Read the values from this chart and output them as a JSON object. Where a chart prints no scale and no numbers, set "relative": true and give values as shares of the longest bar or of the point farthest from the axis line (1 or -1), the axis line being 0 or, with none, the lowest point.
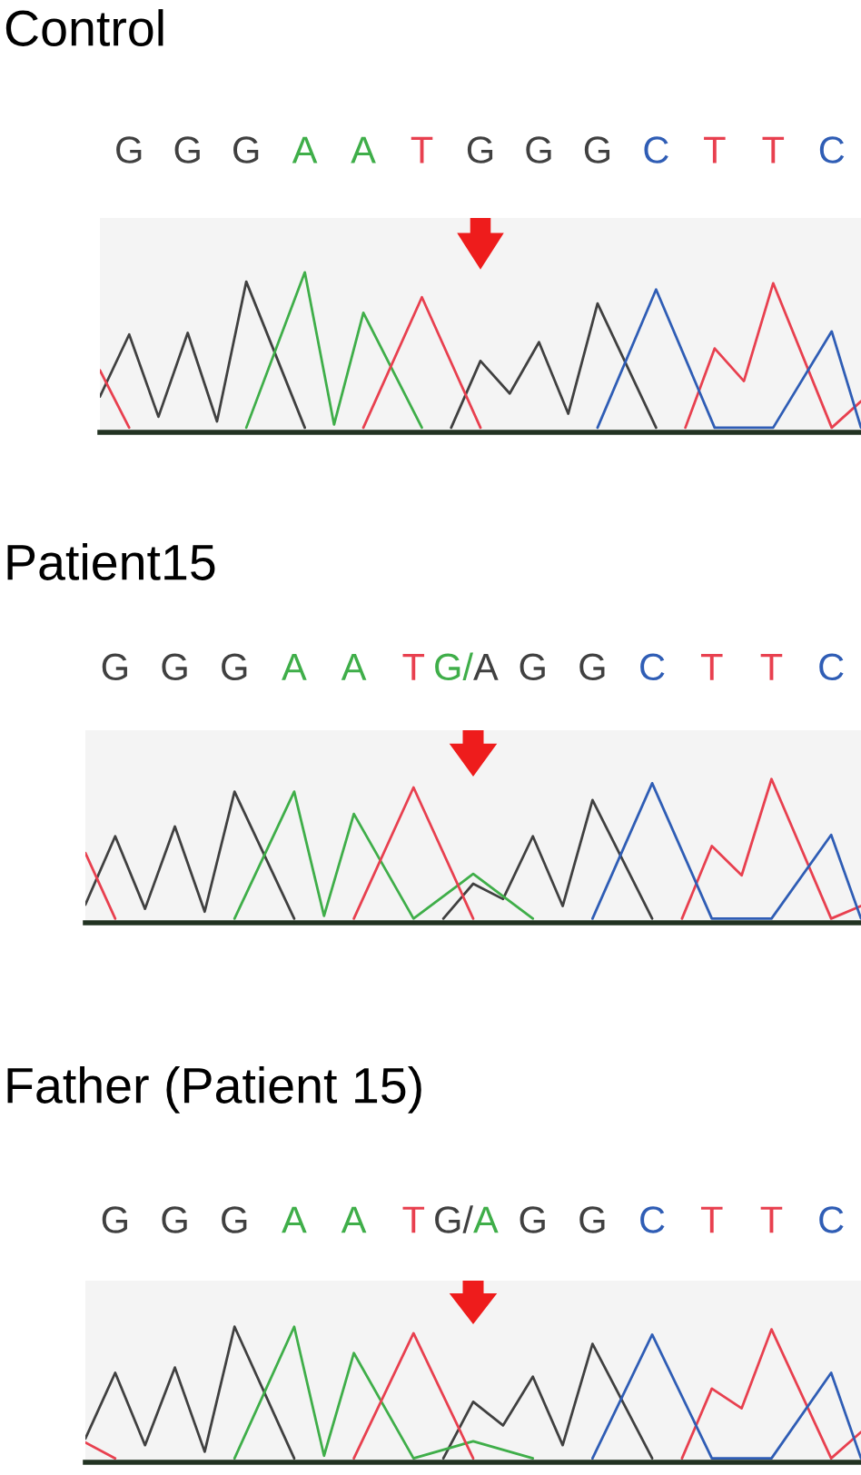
{
  "chart_data": [
    {
      "type": "line",
      "title": "Control",
      "relative": true,
      "categories": [
        null,
        "G",
        null,
        "G",
        null,
        "G",
        null,
        "A",
        null,
        "A",
        null,
        "T",
        null,
        "G",
        null,
        "G",
        null,
        "G",
        null,
        "C",
        null,
        "T",
        null,
        "T",
        null,
        "C",
        null
      ],
      "series": [
        {
          "color": "#404040",
          "values": [
            0.2,
            0.6,
            0.07,
            0.61,
            0.04,
            0.94,
            null,
            0,
            null,
            null,
            null,
            null,
            0,
            0.43,
            0.22,
            0.55,
            0.09,
            0.8,
            null,
            0,
            null,
            null,
            null,
            null,
            null,
            null,
            null
          ]
        },
        {
          "color": "#3fae49",
          "values": [
            null,
            null,
            null,
            null,
            null,
            0,
            null,
            1.0,
            0.02,
            0.74,
            null,
            0,
            null,
            null,
            null,
            null,
            null,
            null,
            null,
            null,
            null,
            null,
            null,
            null,
            null,
            null,
            null
          ]
        },
        {
          "color": "#e8404f",
          "values": [
            0.37,
            0,
            null,
            null,
            null,
            null,
            null,
            null,
            null,
            0,
            null,
            0.84,
            null,
            0,
            null,
            null,
            null,
            null,
            null,
            null,
            0,
            0.51,
            0.3,
            0.93,
            null,
            0,
            0.17
          ]
        },
        {
          "color": "#2f5db5",
          "values": [
            null,
            null,
            null,
            null,
            null,
            null,
            null,
            null,
            null,
            null,
            null,
            null,
            null,
            null,
            null,
            null,
            null,
            0,
            null,
            0.89,
            null,
            0,
            null,
            0,
            null,
            0.62,
            0
          ]
        }
      ]
    },
    {
      "type": "line",
      "title": "Patient15",
      "relative": true,
      "categories": [
        null,
        "G",
        null,
        "G",
        null,
        "G",
        null,
        "A",
        null,
        "A",
        null,
        "T",
        null,
        "G/A",
        null,
        "G",
        null,
        "G",
        null,
        "C",
        null,
        "T",
        null,
        "T",
        null,
        "C",
        null
      ],
      "series": [
        {
          "color": "#404040",
          "values": [
            0.1,
            0.59,
            0.07,
            0.66,
            0.05,
            0.91,
            null,
            0,
            null,
            null,
            null,
            null,
            0,
            0.25,
            0.14,
            0.59,
            0.09,
            0.85,
            null,
            0,
            null,
            null,
            null,
            null,
            null,
            null,
            null
          ]
        },
        {
          "color": "#3fae49",
          "values": [
            null,
            null,
            null,
            null,
            null,
            0,
            null,
            0.91,
            0.02,
            0.75,
            null,
            0,
            null,
            0.32,
            null,
            0,
            null,
            null,
            null,
            null,
            null,
            null,
            null,
            null,
            null,
            null,
            null
          ]
        },
        {
          "color": "#e8404f",
          "values": [
            0.47,
            0,
            null,
            null,
            null,
            null,
            null,
            null,
            null,
            0,
            null,
            0.94,
            null,
            0,
            null,
            null,
            null,
            null,
            null,
            null,
            0,
            0.52,
            0.31,
            1.0,
            null,
            0,
            0.09
          ]
        },
        {
          "color": "#2f5db5",
          "values": [
            null,
            null,
            null,
            null,
            null,
            null,
            null,
            null,
            null,
            null,
            null,
            null,
            null,
            null,
            null,
            null,
            null,
            0,
            null,
            0.97,
            null,
            0,
            null,
            0,
            null,
            0.6,
            0
          ]
        }
      ]
    },
    {
      "type": "line",
      "title": "Father (Patient 15)",
      "relative": true,
      "categories": [
        null,
        "G",
        null,
        "G",
        null,
        "G",
        null,
        "A",
        null,
        "A",
        null,
        "T",
        null,
        "G/A",
        null,
        "G",
        null,
        "G",
        null,
        "C",
        null,
        "T",
        null,
        "T",
        null,
        "C",
        null
      ],
      "series": [
        {
          "color": "#404040",
          "values": [
            0.15,
            0.65,
            0.1,
            0.69,
            0.05,
            1.0,
            null,
            0,
            null,
            null,
            null,
            null,
            0,
            0.43,
            0.25,
            0.62,
            0.1,
            0.87,
            null,
            0,
            null,
            null,
            null,
            null,
            null,
            null,
            null
          ]
        },
        {
          "color": "#3fae49",
          "values": [
            null,
            null,
            null,
            null,
            null,
            0,
            null,
            1.0,
            0.02,
            0.8,
            null,
            0,
            null,
            0.13,
            null,
            0,
            null,
            null,
            null,
            null,
            null,
            null,
            null,
            null,
            null,
            null,
            null
          ]
        },
        {
          "color": "#e8404f",
          "values": [
            0.12,
            0,
            null,
            null,
            null,
            null,
            null,
            null,
            null,
            0,
            null,
            0.95,
            null,
            0,
            null,
            null,
            null,
            null,
            null,
            null,
            0,
            0.53,
            0.38,
            0.98,
            null,
            0,
            0.2
          ]
        },
        {
          "color": "#2f5db5",
          "values": [
            null,
            null,
            null,
            null,
            null,
            null,
            null,
            null,
            null,
            null,
            null,
            null,
            null,
            null,
            null,
            null,
            null,
            0,
            null,
            0.94,
            null,
            0,
            null,
            0,
            null,
            0.65,
            0
          ]
        }
      ]
    }
  ]
}
